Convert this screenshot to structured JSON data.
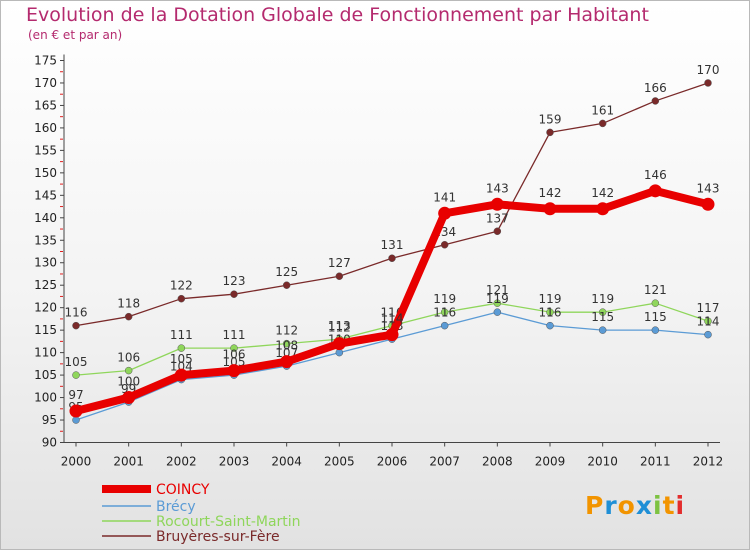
{
  "chart_data": {
    "type": "line",
    "title": "Evolution de la Dotation Globale de Fonctionnement par Habitant",
    "subtitle": "(en € et par an)",
    "categories": [
      "2000",
      "2001",
      "2002",
      "2003",
      "2004",
      "2005",
      "2006",
      "2007",
      "2008",
      "2009",
      "2010",
      "2011",
      "2012"
    ],
    "ylim": [
      90,
      175
    ],
    "yticks": [
      90,
      95,
      100,
      105,
      110,
      115,
      120,
      125,
      130,
      135,
      140,
      145,
      150,
      155,
      160,
      165,
      170,
      175
    ],
    "series": [
      {
        "name": "COINCY",
        "color": "#e80000",
        "values": [
          97,
          100,
          105,
          106,
          108,
          112,
          114,
          141,
          143,
          142,
          142,
          146,
          143
        ]
      },
      {
        "name": "Brécy",
        "color": "#5b9bd5",
        "values": [
          95,
          99,
          104,
          105,
          107,
          110,
          113,
          116,
          119,
          116,
          115,
          115,
          114
        ]
      },
      {
        "name": "Rocourt-Saint-Martin",
        "color": "#8fd65b",
        "values": [
          105,
          106,
          111,
          111,
          112,
          113,
          116,
          119,
          121,
          119,
          119,
          121,
          117
        ]
      },
      {
        "name": "Bruyères-sur-Fère",
        "color": "#7a2a2a",
        "values": [
          116,
          118,
          122,
          123,
          125,
          127,
          131,
          134,
          137,
          159,
          161,
          166,
          170
        ]
      }
    ]
  },
  "logo": {
    "letters": [
      "P",
      "r",
      "o",
      "x",
      "i",
      "t",
      "i"
    ],
    "colors": [
      "#f29400",
      "#1f8fd6",
      "#f29400",
      "#1f8fd6",
      "#7dc242",
      "#f29400",
      "#e32d2d"
    ]
  }
}
